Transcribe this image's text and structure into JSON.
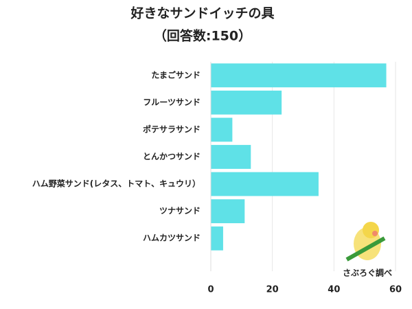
{
  "chart_data": {
    "type": "bar",
    "orientation": "horizontal",
    "title": "好きなサンドイッチの具",
    "subtitle": "（回答数:150）",
    "categories": [
      "たまごサンド",
      "フルーツサンド",
      "ポテサラサンド",
      "とんかつサンド",
      "ハム野菜サンド(レタス、トマト、キュウリ）",
      "ツナサンド",
      "ハムカツサンド"
    ],
    "values": [
      57,
      23,
      7,
      13,
      35,
      11,
      4
    ],
    "color": "#5fe1e7",
    "xlim": [
      0,
      60
    ],
    "xticks": [
      0,
      20,
      40,
      60
    ],
    "grid": true,
    "annotation": "さぶろぐ調べ"
  }
}
